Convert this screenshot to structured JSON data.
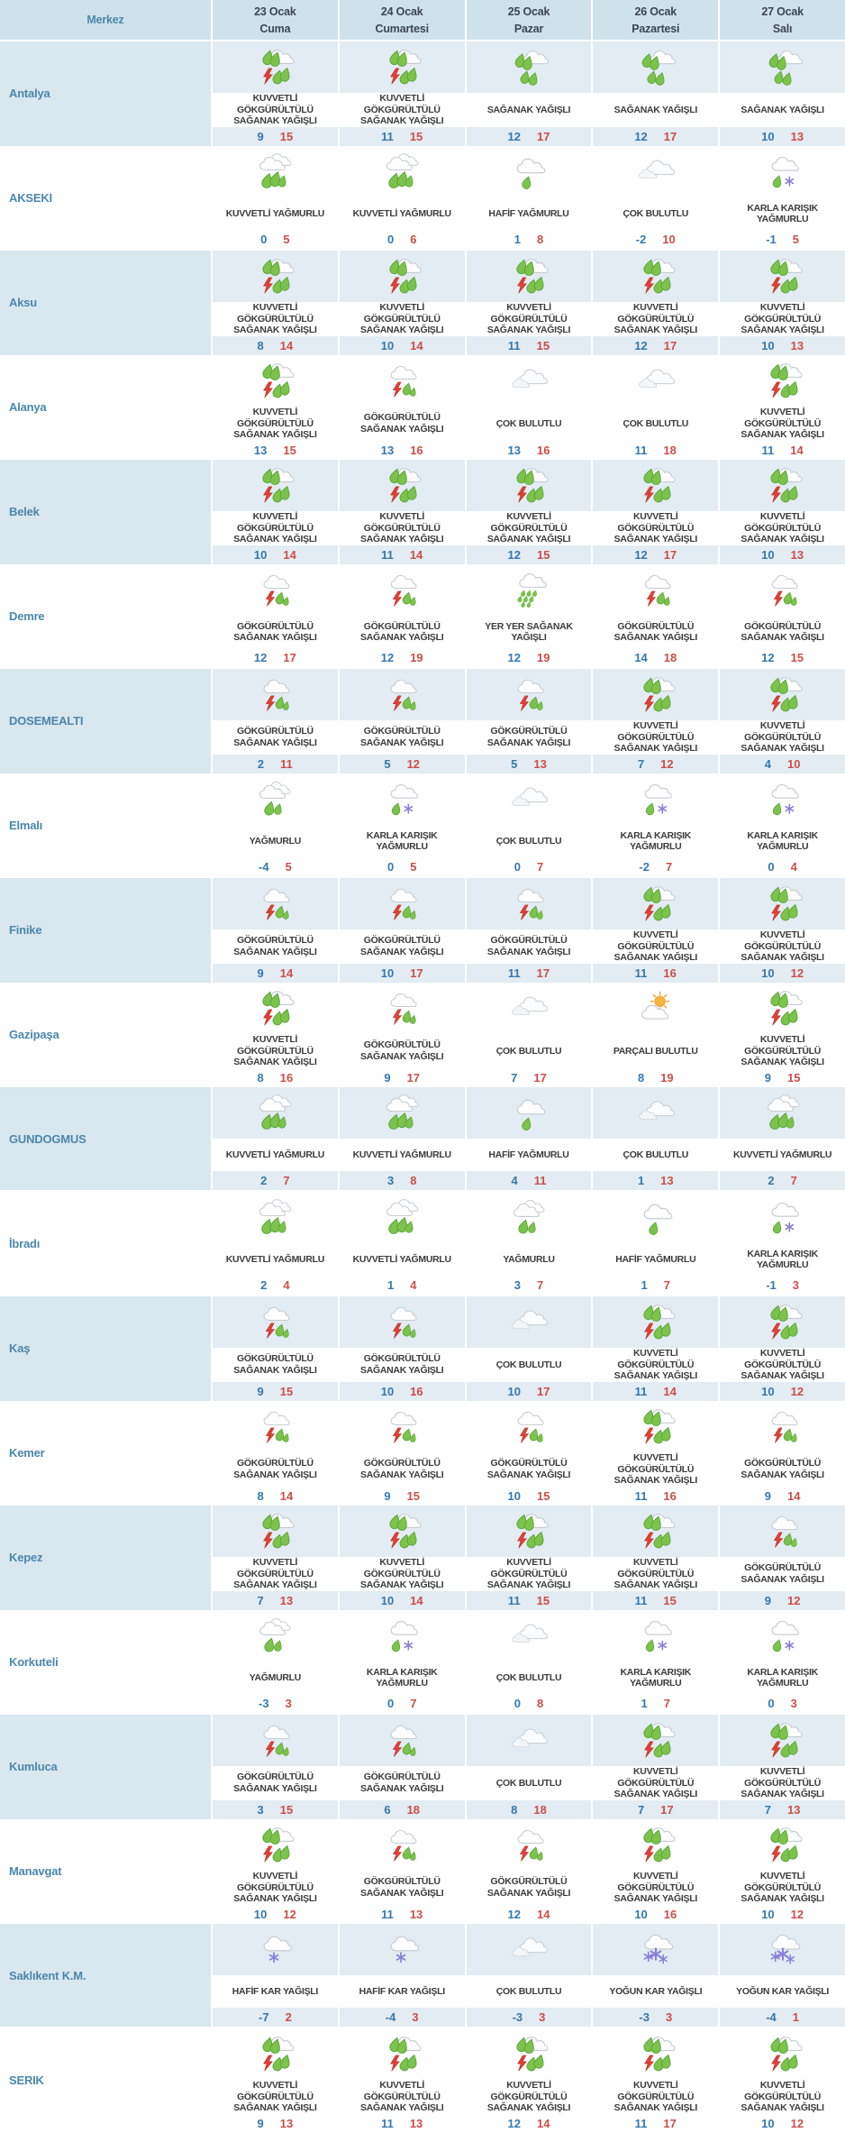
{
  "colors": {
    "header_bg": "#cfe2ec",
    "tint_row_bg": "#e2ecf2",
    "tint_merkez_bg": "#d9e7ef",
    "city_label": "#4b87ac",
    "min_temp": "#3678ad",
    "max_temp": "#cc4e4a"
  },
  "table": {
    "columns": [
      {
        "label": "Merkez"
      },
      {
        "date": "23 Ocak",
        "day": "Cuma"
      },
      {
        "date": "24 Ocak",
        "day": "Cumartesi"
      },
      {
        "date": "25 Ocak",
        "day": "Pazar"
      },
      {
        "date": "26 Ocak",
        "day": "Pazartesi"
      },
      {
        "date": "27 Ocak",
        "day": "Salı"
      }
    ],
    "rows": [
      {
        "city": "Antalya",
        "cells": [
          {
            "icon": "thunderstorm-heavy",
            "desc": "KUVVETLİ GÖKGÜRÜLTÜLÜ SAĞANAK YAĞIŞLI",
            "min": "9",
            "max": "15"
          },
          {
            "icon": "thunderstorm-heavy",
            "desc": "KUVVETLİ GÖKGÜRÜLTÜLÜ SAĞANAK YAĞIŞLI",
            "min": "11",
            "max": "15"
          },
          {
            "icon": "shower",
            "desc": "SAĞANAK YAĞIŞLI",
            "min": "12",
            "max": "17"
          },
          {
            "icon": "shower",
            "desc": "SAĞANAK YAĞIŞLI",
            "min": "12",
            "max": "17"
          },
          {
            "icon": "shower",
            "desc": "SAĞANAK YAĞIŞLI",
            "min": "10",
            "max": "13"
          }
        ]
      },
      {
        "city": "AKSEKI",
        "cells": [
          {
            "icon": "heavy-rain",
            "desc": "KUVVETLİ YAĞMURLU",
            "min": "0",
            "max": "5"
          },
          {
            "icon": "heavy-rain",
            "desc": "KUVVETLİ YAĞMURLU",
            "min": "0",
            "max": "6"
          },
          {
            "icon": "light-rain",
            "desc": "HAFİF YAĞMURLU",
            "min": "1",
            "max": "8"
          },
          {
            "icon": "cloudy",
            "desc": "ÇOK BULUTLU",
            "min": "-2",
            "max": "10"
          },
          {
            "icon": "sleet",
            "desc": "KARLA KARIŞIK YAĞMURLU",
            "min": "-1",
            "max": "5"
          }
        ]
      },
      {
        "city": "Aksu",
        "cells": [
          {
            "icon": "thunderstorm-heavy",
            "desc": "KUVVETLİ GÖKGÜRÜLTÜLÜ SAĞANAK YAĞIŞLI",
            "min": "8",
            "max": "14"
          },
          {
            "icon": "thunderstorm-heavy",
            "desc": "KUVVETLİ GÖKGÜRÜLTÜLÜ SAĞANAK YAĞIŞLI",
            "min": "10",
            "max": "14"
          },
          {
            "icon": "thunderstorm-heavy",
            "desc": "KUVVETLİ GÖKGÜRÜLTÜLÜ SAĞANAK YAĞIŞLI",
            "min": "11",
            "max": "15"
          },
          {
            "icon": "thunderstorm-heavy",
            "desc": "KUVVETLİ GÖKGÜRÜLTÜLÜ SAĞANAK YAĞIŞLI",
            "min": "12",
            "max": "17"
          },
          {
            "icon": "thunderstorm-heavy",
            "desc": "KUVVETLİ GÖKGÜRÜLTÜLÜ SAĞANAK YAĞIŞLI",
            "min": "10",
            "max": "13"
          }
        ]
      },
      {
        "city": "Alanya",
        "cells": [
          {
            "icon": "thunderstorm-heavy",
            "desc": "KUVVETLİ GÖKGÜRÜLTÜLÜ SAĞANAK YAĞIŞLI",
            "min": "13",
            "max": "15"
          },
          {
            "icon": "thunderstorm",
            "desc": "GÖKGÜRÜLTÜLÜ SAĞANAK YAĞIŞLI",
            "min": "13",
            "max": "16"
          },
          {
            "icon": "cloudy",
            "desc": "ÇOK BULUTLU",
            "min": "13",
            "max": "16"
          },
          {
            "icon": "cloudy",
            "desc": "ÇOK BULUTLU",
            "min": "11",
            "max": "18"
          },
          {
            "icon": "thunderstorm-heavy",
            "desc": "KUVVETLİ GÖKGÜRÜLTÜLÜ SAĞANAK YAĞIŞLI",
            "min": "11",
            "max": "14"
          }
        ]
      },
      {
        "city": "Belek",
        "cells": [
          {
            "icon": "thunderstorm-heavy",
            "desc": "KUVVETLİ GÖKGÜRÜLTÜLÜ SAĞANAK YAĞIŞLI",
            "min": "10",
            "max": "14"
          },
          {
            "icon": "thunderstorm-heavy",
            "desc": "KUVVETLİ GÖKGÜRÜLTÜLÜ SAĞANAK YAĞIŞLI",
            "min": "11",
            "max": "14"
          },
          {
            "icon": "thunderstorm-heavy",
            "desc": "KUVVETLİ GÖKGÜRÜLTÜLÜ SAĞANAK YAĞIŞLI",
            "min": "12",
            "max": "15"
          },
          {
            "icon": "thunderstorm-heavy",
            "desc": "KUVVETLİ GÖKGÜRÜLTÜLÜ SAĞANAK YAĞIŞLI",
            "min": "12",
            "max": "17"
          },
          {
            "icon": "thunderstorm-heavy",
            "desc": "KUVVETLİ GÖKGÜRÜLTÜLÜ SAĞANAK YAĞIŞLI",
            "min": "10",
            "max": "13"
          }
        ]
      },
      {
        "city": "Demre",
        "cells": [
          {
            "icon": "thunderstorm",
            "desc": "GÖKGÜRÜLTÜLÜ SAĞANAK YAĞIŞLI",
            "min": "12",
            "max": "17"
          },
          {
            "icon": "thunderstorm",
            "desc": "GÖKGÜRÜLTÜLÜ SAĞANAK YAĞIŞLI",
            "min": "12",
            "max": "19"
          },
          {
            "icon": "scattered-shower",
            "desc": "YER YER SAĞANAK YAĞIŞLI",
            "min": "12",
            "max": "19"
          },
          {
            "icon": "thunderstorm",
            "desc": "GÖKGÜRÜLTÜLÜ SAĞANAK YAĞIŞLI",
            "min": "14",
            "max": "18"
          },
          {
            "icon": "thunderstorm",
            "desc": "GÖKGÜRÜLTÜLÜ SAĞANAK YAĞIŞLI",
            "min": "12",
            "max": "15"
          }
        ]
      },
      {
        "city": "DOSEMEALTI",
        "cells": [
          {
            "icon": "thunderstorm",
            "desc": "GÖKGÜRÜLTÜLÜ SAĞANAK YAĞIŞLI",
            "min": "2",
            "max": "11"
          },
          {
            "icon": "thunderstorm",
            "desc": "GÖKGÜRÜLTÜLÜ SAĞANAK YAĞIŞLI",
            "min": "5",
            "max": "12"
          },
          {
            "icon": "thunderstorm",
            "desc": "GÖKGÜRÜLTÜLÜ SAĞANAK YAĞIŞLI",
            "min": "5",
            "max": "13"
          },
          {
            "icon": "thunderstorm-heavy",
            "desc": "KUVVETLİ GÖKGÜRÜLTÜLÜ SAĞANAK YAĞIŞLI",
            "min": "7",
            "max": "12"
          },
          {
            "icon": "thunderstorm-heavy",
            "desc": "KUVVETLİ GÖKGÜRÜLTÜLÜ SAĞANAK YAĞIŞLI",
            "min": "4",
            "max": "10"
          }
        ]
      },
      {
        "city": "Elmalı",
        "cells": [
          {
            "icon": "rain",
            "desc": "YAĞMURLU",
            "min": "-4",
            "max": "5"
          },
          {
            "icon": "sleet",
            "desc": "KARLA KARIŞIK YAĞMURLU",
            "min": "0",
            "max": "5"
          },
          {
            "icon": "cloudy",
            "desc": "ÇOK BULUTLU",
            "min": "0",
            "max": "7"
          },
          {
            "icon": "sleet",
            "desc": "KARLA KARIŞIK YAĞMURLU",
            "min": "-2",
            "max": "7"
          },
          {
            "icon": "sleet",
            "desc": "KARLA KARIŞIK YAĞMURLU",
            "min": "0",
            "max": "4"
          }
        ]
      },
      {
        "city": "Finike",
        "cells": [
          {
            "icon": "thunderstorm",
            "desc": "GÖKGÜRÜLTÜLÜ SAĞANAK YAĞIŞLI",
            "min": "9",
            "max": "14"
          },
          {
            "icon": "thunderstorm",
            "desc": "GÖKGÜRÜLTÜLÜ SAĞANAK YAĞIŞLI",
            "min": "10",
            "max": "17"
          },
          {
            "icon": "thunderstorm",
            "desc": "GÖKGÜRÜLTÜLÜ SAĞANAK YAĞIŞLI",
            "min": "11",
            "max": "17"
          },
          {
            "icon": "thunderstorm-heavy",
            "desc": "KUVVETLİ GÖKGÜRÜLTÜLÜ SAĞANAK YAĞIŞLI",
            "min": "11",
            "max": "16"
          },
          {
            "icon": "thunderstorm-heavy",
            "desc": "KUVVETLİ GÖKGÜRÜLTÜLÜ SAĞANAK YAĞIŞLI",
            "min": "10",
            "max": "12"
          }
        ]
      },
      {
        "city": "Gazipaşa",
        "cells": [
          {
            "icon": "thunderstorm-heavy",
            "desc": "KUVVETLİ GÖKGÜRÜLTÜLÜ SAĞANAK YAĞIŞLI",
            "min": "8",
            "max": "16"
          },
          {
            "icon": "thunderstorm",
            "desc": "GÖKGÜRÜLTÜLÜ SAĞANAK YAĞIŞLI",
            "min": "9",
            "max": "17"
          },
          {
            "icon": "cloudy",
            "desc": "ÇOK BULUTLU",
            "min": "7",
            "max": "17"
          },
          {
            "icon": "partly-cloudy",
            "desc": "PARÇALI BULUTLU",
            "min": "8",
            "max": "19"
          },
          {
            "icon": "thunderstorm-heavy",
            "desc": "KUVVETLİ GÖKGÜRÜLTÜLÜ SAĞANAK YAĞIŞLI",
            "min": "9",
            "max": "15"
          }
        ]
      },
      {
        "city": "GUNDOGMUS",
        "cells": [
          {
            "icon": "heavy-rain",
            "desc": "KUVVETLİ YAĞMURLU",
            "min": "2",
            "max": "7"
          },
          {
            "icon": "heavy-rain",
            "desc": "KUVVETLİ YAĞMURLU",
            "min": "3",
            "max": "8"
          },
          {
            "icon": "light-rain",
            "desc": "HAFİF YAĞMURLU",
            "min": "4",
            "max": "11"
          },
          {
            "icon": "cloudy",
            "desc": "ÇOK BULUTLU",
            "min": "1",
            "max": "13"
          },
          {
            "icon": "heavy-rain",
            "desc": "KUVVETLİ YAĞMURLU",
            "min": "2",
            "max": "7"
          }
        ]
      },
      {
        "city": "İbradı",
        "cells": [
          {
            "icon": "heavy-rain",
            "desc": "KUVVETLİ YAĞMURLU",
            "min": "2",
            "max": "4"
          },
          {
            "icon": "heavy-rain",
            "desc": "KUVVETLİ YAĞMURLU",
            "min": "1",
            "max": "4"
          },
          {
            "icon": "rain",
            "desc": "YAĞMURLU",
            "min": "3",
            "max": "7"
          },
          {
            "icon": "light-rain",
            "desc": "HAFİF YAĞMURLU",
            "min": "1",
            "max": "7"
          },
          {
            "icon": "sleet",
            "desc": "KARLA KARIŞIK YAĞMURLU",
            "min": "-1",
            "max": "3"
          }
        ]
      },
      {
        "city": "Kaş",
        "cells": [
          {
            "icon": "thunderstorm",
            "desc": "GÖKGÜRÜLTÜLÜ SAĞANAK YAĞIŞLI",
            "min": "9",
            "max": "15"
          },
          {
            "icon": "thunderstorm",
            "desc": "GÖKGÜRÜLTÜLÜ SAĞANAK YAĞIŞLI",
            "min": "10",
            "max": "16"
          },
          {
            "icon": "cloudy",
            "desc": "ÇOK BULUTLU",
            "min": "10",
            "max": "17"
          },
          {
            "icon": "thunderstorm-heavy",
            "desc": "KUVVETLİ GÖKGÜRÜLTÜLÜ SAĞANAK YAĞIŞLI",
            "min": "11",
            "max": "14"
          },
          {
            "icon": "thunderstorm-heavy",
            "desc": "KUVVETLİ GÖKGÜRÜLTÜLÜ SAĞANAK YAĞIŞLI",
            "min": "10",
            "max": "12"
          }
        ]
      },
      {
        "city": "Kemer",
        "cells": [
          {
            "icon": "thunderstorm",
            "desc": "GÖKGÜRÜLTÜLÜ SAĞANAK YAĞIŞLI",
            "min": "8",
            "max": "14"
          },
          {
            "icon": "thunderstorm",
            "desc": "GÖKGÜRÜLTÜLÜ SAĞANAK YAĞIŞLI",
            "min": "9",
            "max": "15"
          },
          {
            "icon": "thunderstorm",
            "desc": "GÖKGÜRÜLTÜLÜ SAĞANAK YAĞIŞLI",
            "min": "10",
            "max": "15"
          },
          {
            "icon": "thunderstorm-heavy",
            "desc": "KUVVETLİ GÖKGÜRÜLTÜLÜ SAĞANAK YAĞIŞLI",
            "min": "11",
            "max": "16"
          },
          {
            "icon": "thunderstorm",
            "desc": "GÖKGÜRÜLTÜLÜ SAĞANAK YAĞIŞLI",
            "min": "9",
            "max": "14"
          }
        ]
      },
      {
        "city": "Kepez",
        "cells": [
          {
            "icon": "thunderstorm-heavy",
            "desc": "KUVVETLİ GÖKGÜRÜLTÜLÜ SAĞANAK YAĞIŞLI",
            "min": "7",
            "max": "13"
          },
          {
            "icon": "thunderstorm-heavy",
            "desc": "KUVVETLİ GÖKGÜRÜLTÜLÜ SAĞANAK YAĞIŞLI",
            "min": "10",
            "max": "14"
          },
          {
            "icon": "thunderstorm-heavy",
            "desc": "KUVVETLİ GÖKGÜRÜLTÜLÜ SAĞANAK YAĞIŞLI",
            "min": "11",
            "max": "15"
          },
          {
            "icon": "thunderstorm-heavy",
            "desc": "KUVVETLİ GÖKGÜRÜLTÜLÜ SAĞANAK YAĞIŞLI",
            "min": "11",
            "max": "15"
          },
          {
            "icon": "thunderstorm",
            "desc": "GÖKGÜRÜLTÜLÜ SAĞANAK YAĞIŞLI",
            "min": "9",
            "max": "12"
          }
        ]
      },
      {
        "city": "Korkuteli",
        "cells": [
          {
            "icon": "rain",
            "desc": "YAĞMURLU",
            "min": "-3",
            "max": "3"
          },
          {
            "icon": "sleet",
            "desc": "KARLA KARIŞIK YAĞMURLU",
            "min": "0",
            "max": "7"
          },
          {
            "icon": "cloudy",
            "desc": "ÇOK BULUTLU",
            "min": "0",
            "max": "8"
          },
          {
            "icon": "sleet",
            "desc": "KARLA KARIŞIK YAĞMURLU",
            "min": "1",
            "max": "7"
          },
          {
            "icon": "sleet",
            "desc": "KARLA KARIŞIK YAĞMURLU",
            "min": "0",
            "max": "3"
          }
        ]
      },
      {
        "city": "Kumluca",
        "cells": [
          {
            "icon": "thunderstorm",
            "desc": "GÖKGÜRÜLTÜLÜ SAĞANAK YAĞIŞLI",
            "min": "3",
            "max": "15"
          },
          {
            "icon": "thunderstorm",
            "desc": "GÖKGÜRÜLTÜLÜ SAĞANAK YAĞIŞLI",
            "min": "6",
            "max": "18"
          },
          {
            "icon": "cloudy",
            "desc": "ÇOK BULUTLU",
            "min": "8",
            "max": "18"
          },
          {
            "icon": "thunderstorm-heavy",
            "desc": "KUVVETLİ GÖKGÜRÜLTÜLÜ SAĞANAK YAĞIŞLI",
            "min": "7",
            "max": "17"
          },
          {
            "icon": "thunderstorm-heavy",
            "desc": "KUVVETLİ GÖKGÜRÜLTÜLÜ SAĞANAK YAĞIŞLI",
            "min": "7",
            "max": "13"
          }
        ]
      },
      {
        "city": "Manavgat",
        "cells": [
          {
            "icon": "thunderstorm-heavy",
            "desc": "KUVVETLİ GÖKGÜRÜLTÜLÜ SAĞANAK YAĞIŞLI",
            "min": "10",
            "max": "12"
          },
          {
            "icon": "thunderstorm",
            "desc": "GÖKGÜRÜLTÜLÜ SAĞANAK YAĞIŞLI",
            "min": "11",
            "max": "13"
          },
          {
            "icon": "thunderstorm",
            "desc": "GÖKGÜRÜLTÜLÜ SAĞANAK YAĞIŞLI",
            "min": "12",
            "max": "14"
          },
          {
            "icon": "thunderstorm-heavy",
            "desc": "KUVVETLİ GÖKGÜRÜLTÜLÜ SAĞANAK YAĞIŞLI",
            "min": "10",
            "max": "16"
          },
          {
            "icon": "thunderstorm-heavy",
            "desc": "KUVVETLİ GÖKGÜRÜLTÜLÜ SAĞANAK YAĞIŞLI",
            "min": "10",
            "max": "12"
          }
        ]
      },
      {
        "city": "Saklıkent K.M.",
        "cells": [
          {
            "icon": "light-snow",
            "desc": "HAFİF KAR YAĞIŞLI",
            "min": "-7",
            "max": "2"
          },
          {
            "icon": "light-snow",
            "desc": "HAFİF KAR YAĞIŞLI",
            "min": "-4",
            "max": "3"
          },
          {
            "icon": "cloudy",
            "desc": "ÇOK BULUTLU",
            "min": "-3",
            "max": "3"
          },
          {
            "icon": "heavy-snow",
            "desc": "YOĞUN KAR YAĞIŞLI",
            "min": "-3",
            "max": "3"
          },
          {
            "icon": "heavy-snow",
            "desc": "YOĞUN KAR YAĞIŞLI",
            "min": "-4",
            "max": "1"
          }
        ]
      },
      {
        "city": "SERIK",
        "cells": [
          {
            "icon": "thunderstorm-heavy",
            "desc": "KUVVETLİ GÖKGÜRÜLTÜLÜ SAĞANAK YAĞIŞLI",
            "min": "9",
            "max": "13"
          },
          {
            "icon": "thunderstorm-heavy",
            "desc": "KUVVETLİ GÖKGÜRÜLTÜLÜ SAĞANAK YAĞIŞLI",
            "min": "11",
            "max": "13"
          },
          {
            "icon": "thunderstorm-heavy",
            "desc": "KUVVETLİ GÖKGÜRÜLTÜLÜ SAĞANAK YAĞIŞLI",
            "min": "12",
            "max": "14"
          },
          {
            "icon": "thunderstorm-heavy",
            "desc": "KUVVETLİ GÖKGÜRÜLTÜLÜ SAĞANAK YAĞIŞLI",
            "min": "11",
            "max": "17"
          },
          {
            "icon": "thunderstorm-heavy",
            "desc": "KUVVETLİ GÖKGÜRÜLTÜLÜ SAĞANAK YAĞIŞLI",
            "min": "10",
            "max": "12"
          }
        ]
      }
    ]
  }
}
